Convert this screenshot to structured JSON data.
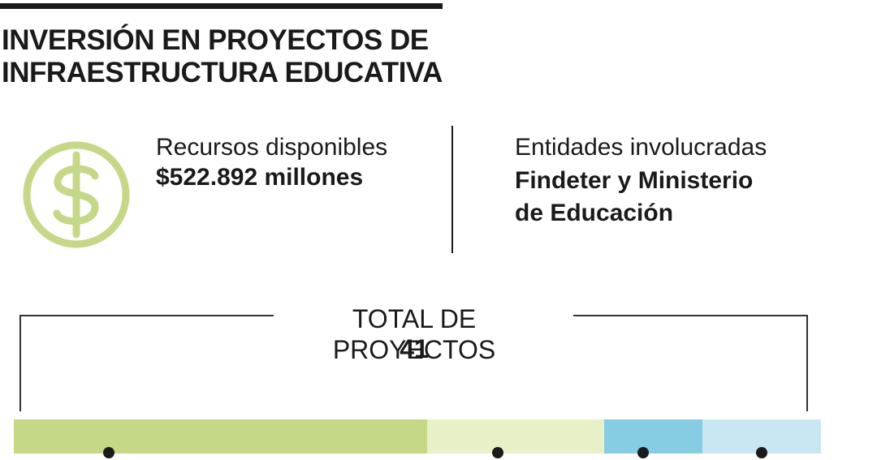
{
  "title": {
    "line1": "INVERSIÓN EN PROYECTOS DE",
    "line2": "INFRAESTRUCTURA EDUCATIVA"
  },
  "resources": {
    "label": "Recursos disponibles",
    "value": "$522.892 millones",
    "icon": "dollar-icon"
  },
  "entities": {
    "label": "Entidades involucradas",
    "value_line1": "Findeter y Ministerio",
    "value_line2": "de Educación"
  },
  "total": {
    "label": "TOTAL DE PROYECTOS",
    "value": "41"
  },
  "segments": [
    {
      "share": 0.512,
      "color": "#c4d888"
    },
    {
      "share": 0.219,
      "color": "#e8f0c8"
    },
    {
      "share": 0.122,
      "color": "#86cce3"
    },
    {
      "share": 0.147,
      "color": "#c9e7f2"
    }
  ],
  "colors": {
    "icon_green": "#c4d888",
    "text": "#1a1a1a"
  }
}
